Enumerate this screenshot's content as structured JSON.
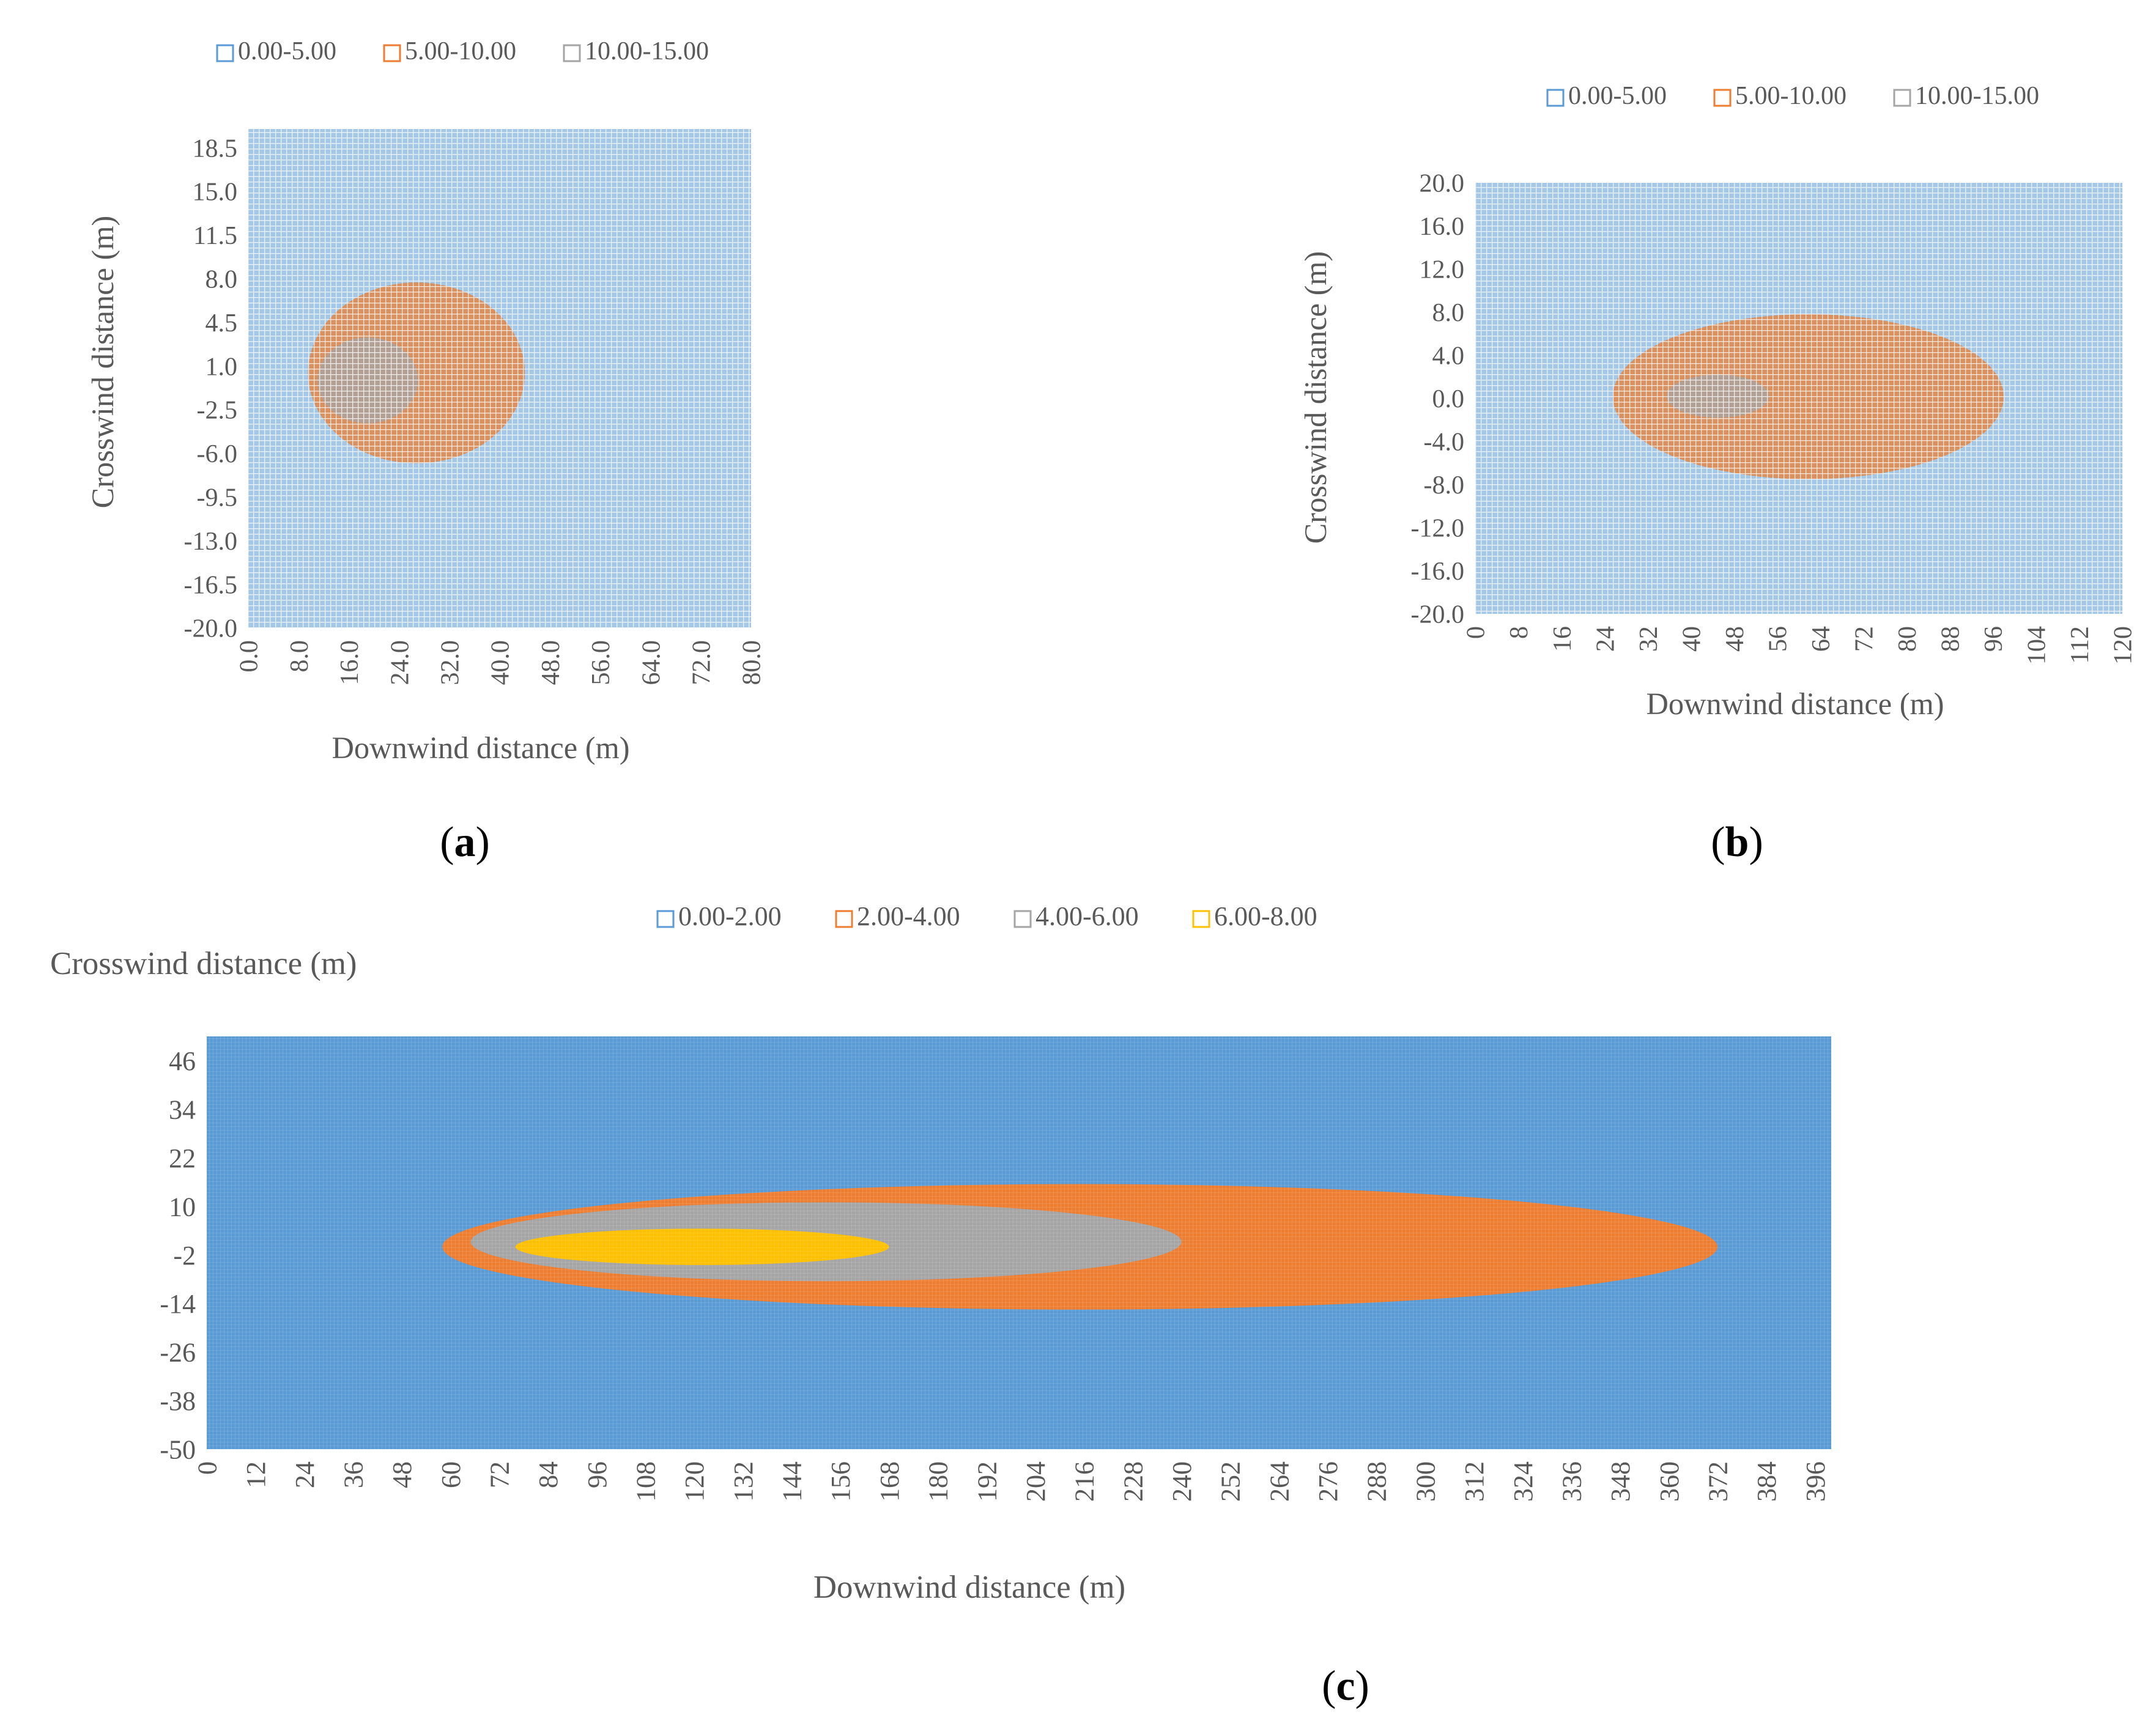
{
  "panels": [
    {
      "label_prefix": "(",
      "label_letter": "a",
      "label_suffix": ")"
    },
    {
      "label_prefix": "(",
      "label_letter": "b",
      "label_suffix": ")"
    },
    {
      "label_prefix": "(",
      "label_letter": "c",
      "label_suffix": ")"
    }
  ],
  "chart_data": [
    {
      "type": "heatmap",
      "subtype": "contour-surface",
      "panel": "a",
      "title": "",
      "xlabel": "Downwind distance (m)",
      "ylabel": "Crosswind distance (m)",
      "xlim": [
        0,
        80
      ],
      "ylim": [
        -20,
        20
      ],
      "x_ticks": [
        "0.0",
        "8.0",
        "16.0",
        "24.0",
        "32.0",
        "40.0",
        "48.0",
        "56.0",
        "64.0",
        "72.0",
        "80.0"
      ],
      "y_ticks": [
        "18.5",
        "15.0",
        "11.5",
        "8.0",
        "4.5",
        "1.0",
        "-2.5",
        "-6.0",
        "-9.5",
        "-13.0",
        "-16.5",
        "-20.0"
      ],
      "legend_position": "top",
      "series": [
        {
          "name": "0.00-5.00",
          "color": "#5b9bd5"
        },
        {
          "name": "5.00-10.00",
          "color": "#ed7d31"
        },
        {
          "name": "10.00-15.00",
          "color": "#a5a5a5"
        }
      ],
      "contours": [
        {
          "level": "5.00-10.00",
          "x_min": 9.5,
          "x_max": 44,
          "y_min": -6.8,
          "y_max": 7.7
        },
        {
          "level": "10.00-15.00",
          "x_min": 11,
          "x_max": 27,
          "y_min": -3.6,
          "y_max": 3.3
        }
      ],
      "grid": true
    },
    {
      "type": "heatmap",
      "subtype": "contour-surface",
      "panel": "b",
      "title": "",
      "xlabel": "Downwind distance (m)",
      "ylabel": "Crosswind distance (m)",
      "xlim": [
        0,
        120
      ],
      "ylim": [
        -20,
        20
      ],
      "x_ticks": [
        "0",
        "8",
        "16",
        "24",
        "32",
        "40",
        "48",
        "56",
        "64",
        "72",
        "80",
        "88",
        "96",
        "104",
        "112",
        "120"
      ],
      "y_ticks": [
        "20.0",
        "16.0",
        "12.0",
        "8.0",
        "4.0",
        "0.0",
        "-4.0",
        "-8.0",
        "-12.0",
        "-16.0",
        "-20.0"
      ],
      "legend_position": "top",
      "series": [
        {
          "name": "0.00-5.00",
          "color": "#5b9bd5"
        },
        {
          "name": "5.00-10.00",
          "color": "#ed7d31"
        },
        {
          "name": "10.00-15.00",
          "color": "#a5a5a5"
        }
      ],
      "contours": [
        {
          "level": "5.00-10.00",
          "x_min": 25.5,
          "x_max": 98,
          "y_min": -7.5,
          "y_max": 7.8
        },
        {
          "level": "10.00-15.00",
          "x_min": 35.5,
          "x_max": 54.5,
          "y_min": -1.8,
          "y_max": 2.2
        }
      ],
      "grid": true
    },
    {
      "type": "heatmap",
      "subtype": "contour-surface",
      "panel": "c",
      "title": "",
      "xlabel": "Downwind distance (m)",
      "ylabel": "Crosswind distance (m)",
      "xlim": [
        0,
        400
      ],
      "ylim": [
        -50,
        52
      ],
      "x_ticks": [
        "0",
        "12",
        "24",
        "36",
        "48",
        "60",
        "72",
        "84",
        "96",
        "108",
        "120",
        "132",
        "144",
        "156",
        "168",
        "180",
        "192",
        "204",
        "216",
        "228",
        "240",
        "252",
        "264",
        "276",
        "288",
        "300",
        "312",
        "324",
        "336",
        "348",
        "360",
        "372",
        "384",
        "396"
      ],
      "y_ticks": [
        "46",
        "34",
        "22",
        "10",
        "-2",
        "-14",
        "-26",
        "-38",
        "-50"
      ],
      "legend_position": "top",
      "series": [
        {
          "name": "0.00-2.00",
          "color": "#5b9bd5"
        },
        {
          "name": "2.00-4.00",
          "color": "#ed7d31"
        },
        {
          "name": "4.00-6.00",
          "color": "#a5a5a5"
        },
        {
          "name": "6.00-8.00",
          "color": "#ffc000"
        }
      ],
      "contours": [
        {
          "level": "2.00-4.00",
          "x_min": 58,
          "x_max": 372,
          "y_min": -15.5,
          "y_max": 15.5
        },
        {
          "level": "4.00-6.00",
          "x_min": 65,
          "x_max": 240,
          "y_min": -8.5,
          "y_max": 11
        },
        {
          "level": "6.00-8.00",
          "x_min": 76,
          "x_max": 168,
          "y_min": -4.5,
          "y_max": 4.5
        }
      ],
      "grid": true
    }
  ]
}
